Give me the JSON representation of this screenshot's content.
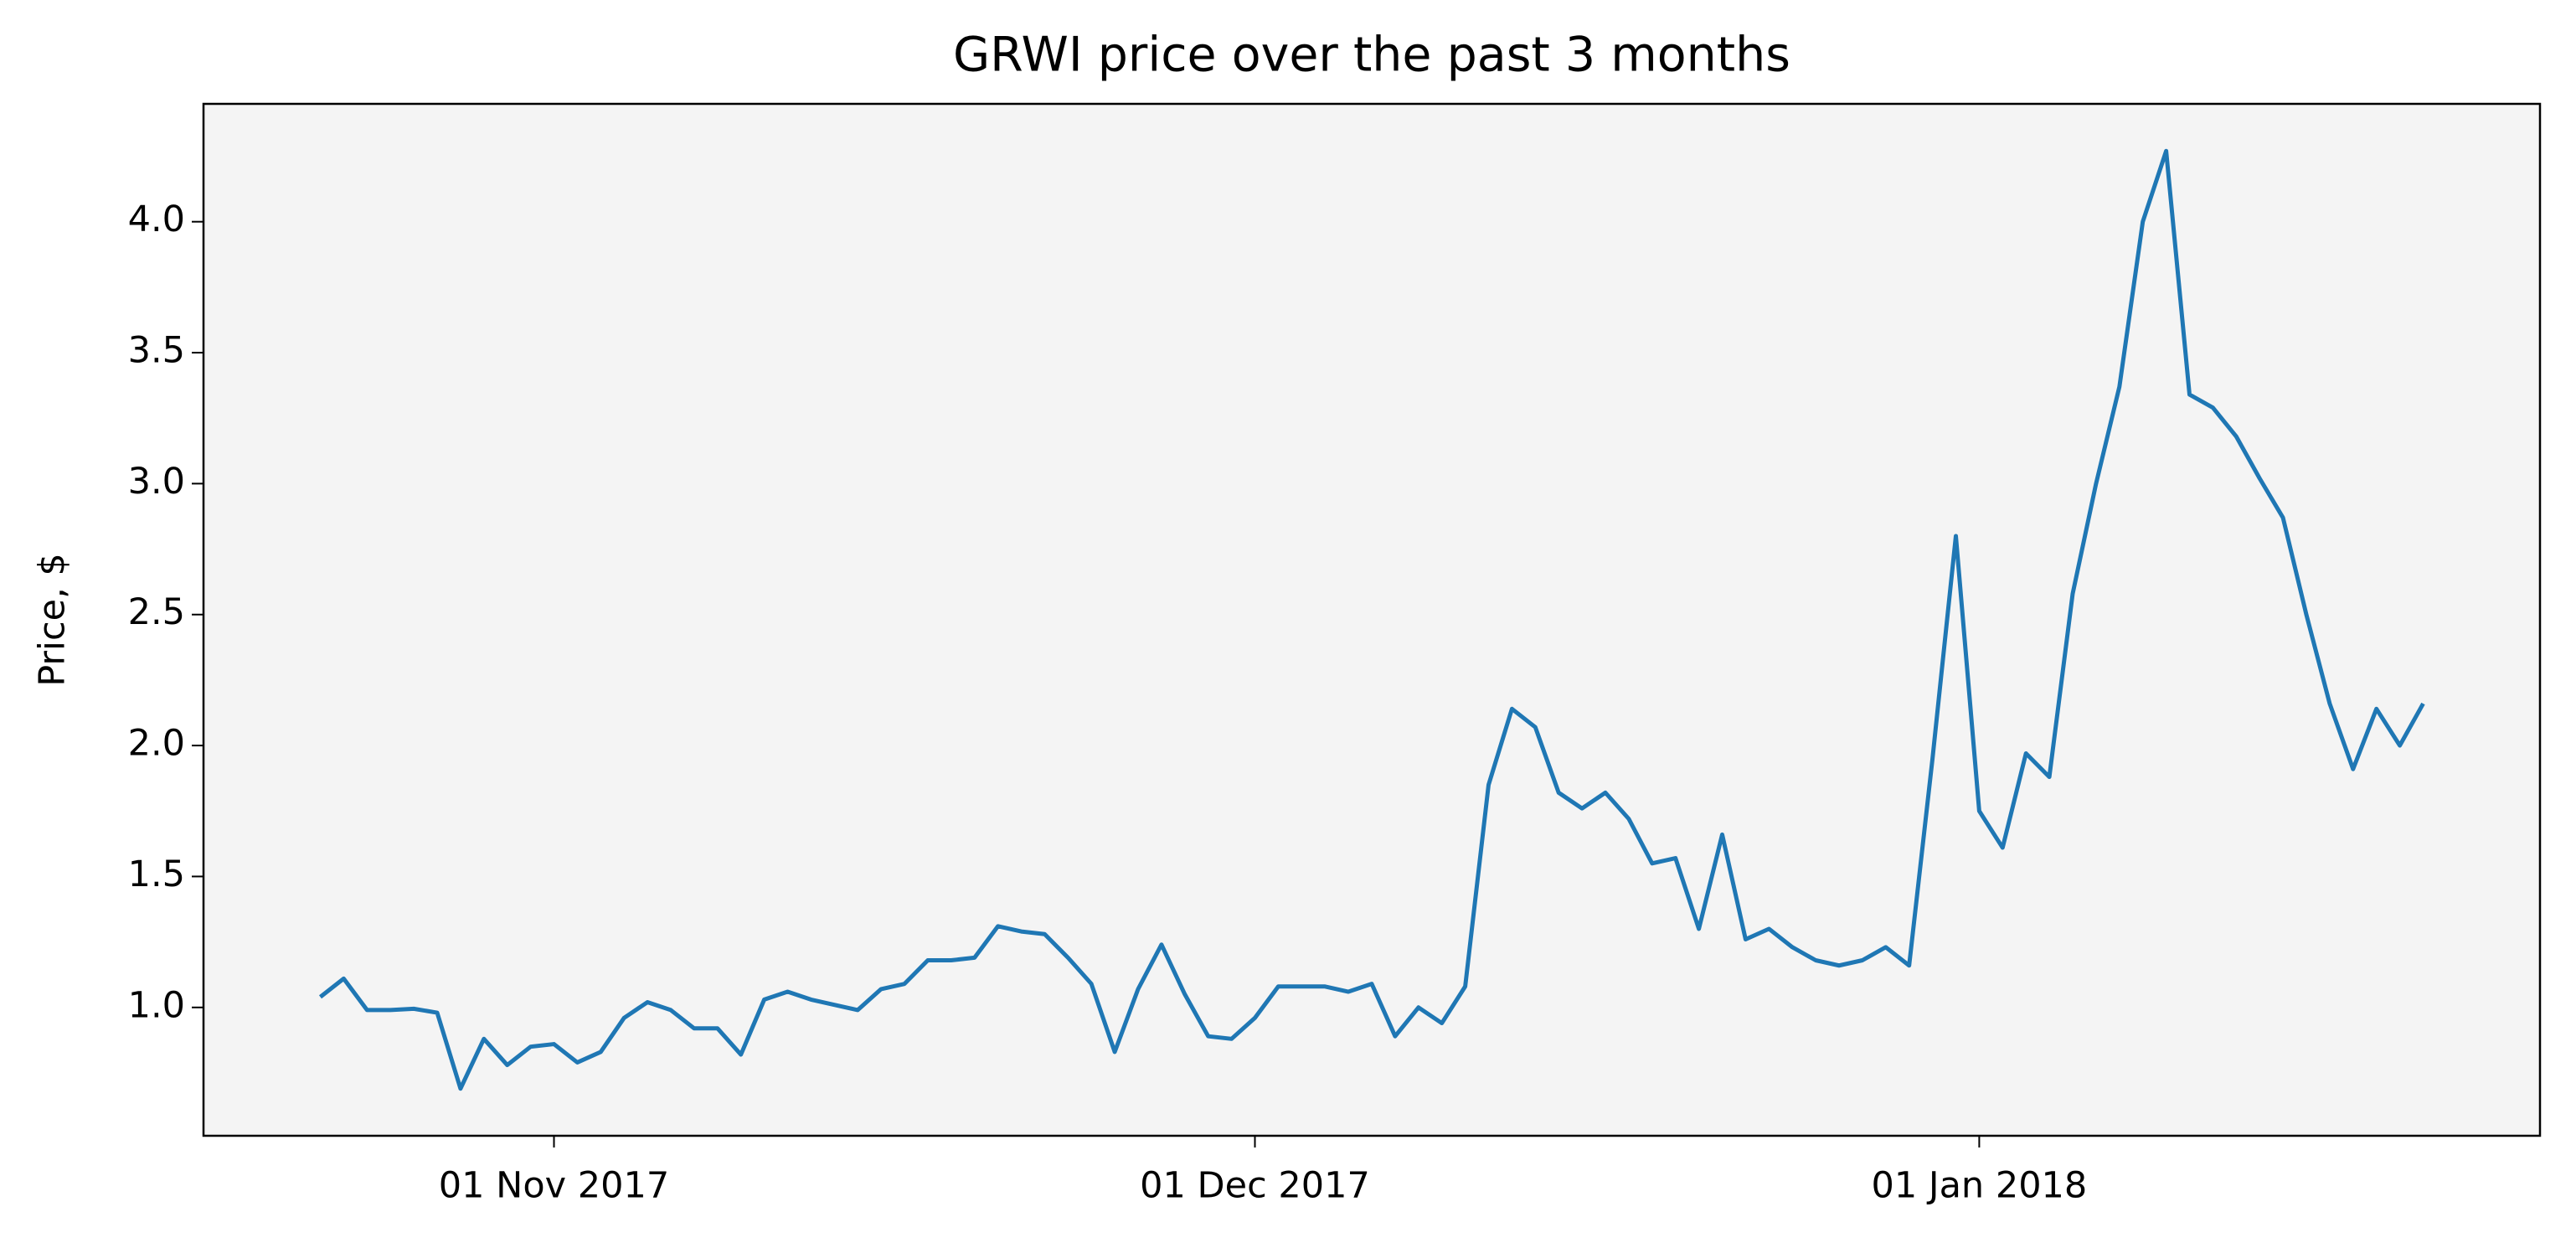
{
  "chart_data": {
    "type": "line",
    "title": "GRWI price over the past 3 months",
    "y_label": "Price, $",
    "x": [
      "2017-10-22",
      "2017-10-23",
      "2017-10-24",
      "2017-10-25",
      "2017-10-26",
      "2017-10-27",
      "2017-10-28",
      "2017-10-29",
      "2017-10-30",
      "2017-10-31",
      "2017-11-01",
      "2017-11-02",
      "2017-11-03",
      "2017-11-04",
      "2017-11-05",
      "2017-11-06",
      "2017-11-07",
      "2017-11-08",
      "2017-11-09",
      "2017-11-10",
      "2017-11-11",
      "2017-11-12",
      "2017-11-13",
      "2017-11-14",
      "2017-11-15",
      "2017-11-16",
      "2017-11-17",
      "2017-11-18",
      "2017-11-19",
      "2017-11-20",
      "2017-11-21",
      "2017-11-22",
      "2017-11-23",
      "2017-11-24",
      "2017-11-25",
      "2017-11-26",
      "2017-11-27",
      "2017-11-28",
      "2017-11-29",
      "2017-11-30",
      "2017-12-01",
      "2017-12-02",
      "2017-12-03",
      "2017-12-04",
      "2017-12-05",
      "2017-12-06",
      "2017-12-07",
      "2017-12-08",
      "2017-12-09",
      "2017-12-10",
      "2017-12-11",
      "2017-12-12",
      "2017-12-13",
      "2017-12-14",
      "2017-12-15",
      "2017-12-16",
      "2017-12-17",
      "2017-12-18",
      "2017-12-19",
      "2017-12-20",
      "2017-12-21",
      "2017-12-22",
      "2017-12-23",
      "2017-12-24",
      "2017-12-25",
      "2017-12-26",
      "2017-12-27",
      "2017-12-28",
      "2017-12-29",
      "2017-12-30",
      "2017-12-31",
      "2018-01-01",
      "2018-01-02",
      "2018-01-03",
      "2018-01-04",
      "2018-01-05",
      "2018-01-06",
      "2018-01-07",
      "2018-01-08",
      "2018-01-09",
      "2018-01-10",
      "2018-01-11",
      "2018-01-12",
      "2018-01-13",
      "2018-01-14",
      "2018-01-15",
      "2018-01-16",
      "2018-01-17",
      "2018-01-18",
      "2018-01-19",
      "2018-01-20"
    ],
    "values": [
      1.04,
      1.11,
      0.99,
      0.99,
      0.995,
      0.98,
      0.69,
      0.88,
      0.78,
      0.85,
      0.86,
      0.79,
      0.83,
      0.96,
      1.02,
      0.99,
      0.92,
      0.92,
      0.82,
      1.03,
      1.06,
      1.03,
      1.01,
      0.99,
      1.07,
      1.09,
      1.18,
      1.18,
      1.19,
      1.31,
      1.29,
      1.28,
      1.19,
      1.09,
      0.83,
      1.07,
      1.24,
      1.05,
      0.89,
      0.88,
      0.96,
      1.08,
      1.08,
      1.08,
      1.06,
      1.09,
      0.89,
      1.0,
      0.94,
      1.08,
      1.85,
      2.14,
      2.07,
      1.82,
      1.76,
      1.82,
      1.72,
      1.55,
      1.57,
      1.3,
      1.66,
      1.26,
      1.3,
      1.23,
      1.18,
      1.16,
      1.18,
      1.23,
      1.16,
      1.95,
      2.8,
      1.75,
      1.61,
      1.97,
      1.88,
      2.58,
      3.0,
      3.37,
      4.0,
      4.27,
      3.34,
      3.29,
      3.18,
      3.02,
      2.87,
      2.5,
      2.16,
      1.91,
      2.14,
      2.0,
      2.16
    ],
    "color": "#1f77b4",
    "xlim": [
      "2017-10-17",
      "2018-01-25"
    ],
    "xticks": [
      {
        "value": "2017-11-01",
        "label": "01 Nov 2017"
      },
      {
        "value": "2017-12-01",
        "label": "01 Dec 2017"
      },
      {
        "value": "2018-01-01",
        "label": "01 Jan 2018"
      }
    ],
    "ylim": [
      0.51,
      4.45
    ],
    "yticks": [
      {
        "value": 1,
        "label": "1.0"
      },
      1.5,
      {
        "value": 2,
        "label": "2.0"
      },
      2.5,
      {
        "value": 3,
        "label": "3.0"
      },
      3.5,
      {
        "value": 4,
        "label": "4.0"
      }
    ],
    "background": "#f4f4f4"
  }
}
